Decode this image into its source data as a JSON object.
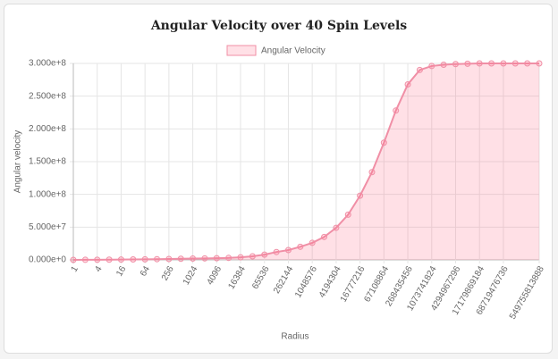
{
  "chart_data": {
    "type": "line",
    "title": "Angular Velocity over 40 Spin Levels",
    "x_label": "Radius",
    "y_label": "Angular velocity",
    "categories": [
      "1",
      null,
      "4",
      null,
      "16",
      null,
      "64",
      null,
      "256",
      null,
      "1024",
      null,
      "4096",
      null,
      "16384",
      null,
      "65536",
      null,
      "262144",
      null,
      "1048576",
      null,
      "4194304",
      null,
      "16777216",
      null,
      "67108864",
      null,
      "268435456",
      null,
      "1073741824",
      null,
      "4294967296",
      null,
      "17179869184",
      null,
      "68719476736",
      null,
      null,
      "549755813888"
    ],
    "series": [
      {
        "name": "Angular Velocity",
        "color": "#f08fa6",
        "fill": "rgba(255,99,132,0.2)",
        "values": [
          0,
          100000,
          200000,
          300000,
          500000,
          700000,
          900000,
          1100000,
          1400000,
          1700000,
          2000000,
          2300000,
          2600000,
          3000000,
          4000000,
          5500000,
          8000000,
          12000000,
          15000000,
          20000000,
          26000000,
          35000000,
          49000000,
          69000000,
          98000000,
          134000000,
          179000000,
          228000000,
          268000000,
          290000000,
          296000000,
          298000000,
          299000000,
          299500000,
          300000000,
          300000000,
          300000000,
          300000000,
          300000000,
          300000000
        ]
      }
    ],
    "ylim": [
      0,
      300000000
    ],
    "yticks": [
      {
        "value": 0,
        "label": "0.000e+0"
      },
      {
        "value": 50000000,
        "label": "5.000e+7"
      },
      {
        "value": 100000000,
        "label": "1.000e+8"
      },
      {
        "value": 150000000,
        "label": "1.500e+8"
      },
      {
        "value": 200000000,
        "label": "2.000e+8"
      },
      {
        "value": 250000000,
        "label": "2.500e+8"
      },
      {
        "value": 300000000,
        "label": "3.000e+8"
      }
    ],
    "grid": true,
    "legend": "top"
  }
}
